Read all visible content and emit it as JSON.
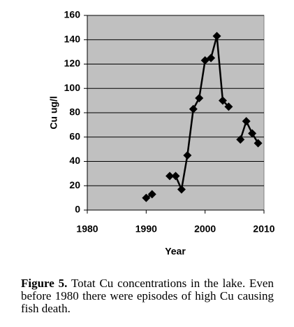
{
  "chart_data": {
    "type": "line",
    "x_label": "Year",
    "y_label": "Cu ug/l",
    "x": [
      1990,
      1991,
      1992,
      1994,
      1995,
      1996,
      1997,
      1998,
      1999,
      2000,
      2001,
      2002,
      2003,
      2004,
      2005,
      2006,
      2007,
      2008,
      2009
    ],
    "series": [
      {
        "name": "Cu",
        "color": "#000000",
        "values": [
          10,
          13,
          null,
          28,
          28,
          17,
          45,
          83,
          92,
          123,
          125,
          143,
          90,
          85,
          null,
          58,
          73,
          63,
          55
        ]
      }
    ],
    "xlim": [
      1980,
      2010
    ],
    "xticks": [
      1980,
      1990,
      2000,
      2010
    ],
    "ylim": [
      0,
      160
    ],
    "yticks": [
      0,
      20,
      40,
      60,
      80,
      100,
      120,
      140,
      160
    ],
    "grid": true,
    "background": "#c0c0c0"
  },
  "caption": {
    "label": "Figure 5.",
    "text": "Totat Cu concentrations in the lake. Even before 1980 there were episodes of high Cu causing fish death."
  }
}
